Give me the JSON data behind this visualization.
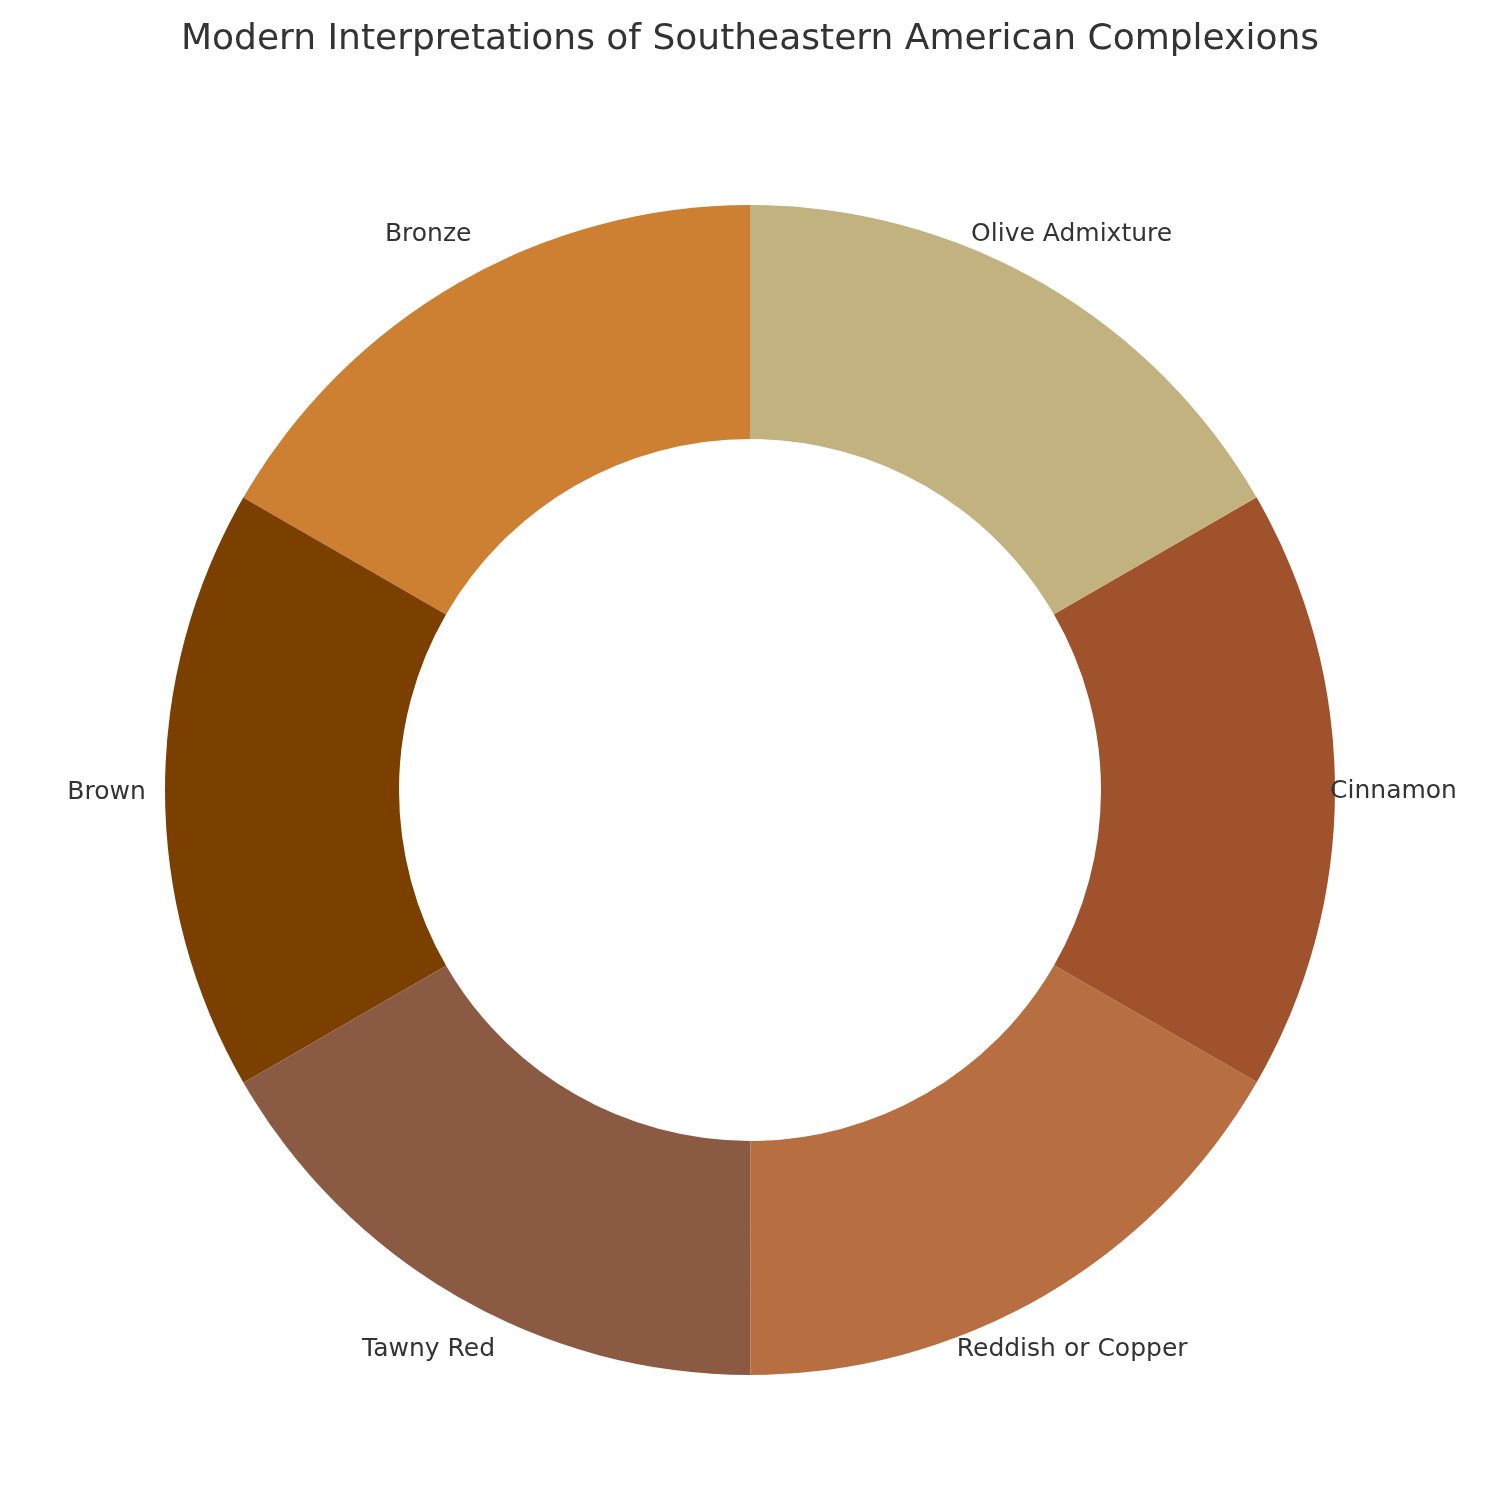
{
  "chart_data": {
    "type": "donut",
    "title": "Modern Interpretations of Southeastern American Complexions",
    "categories": [
      "Bronze",
      "Brown",
      "Tawny Red",
      "Reddish or Copper",
      "Cinnamon",
      "Olive Admixture"
    ],
    "values": [
      16.67,
      16.67,
      16.67,
      16.67,
      16.66,
      16.66
    ],
    "colors": [
      "#cd7f32",
      "#7b3f00",
      "#8b5a42",
      "#b76e40",
      "#a0522d",
      "#c2b280"
    ],
    "legend": false
  }
}
